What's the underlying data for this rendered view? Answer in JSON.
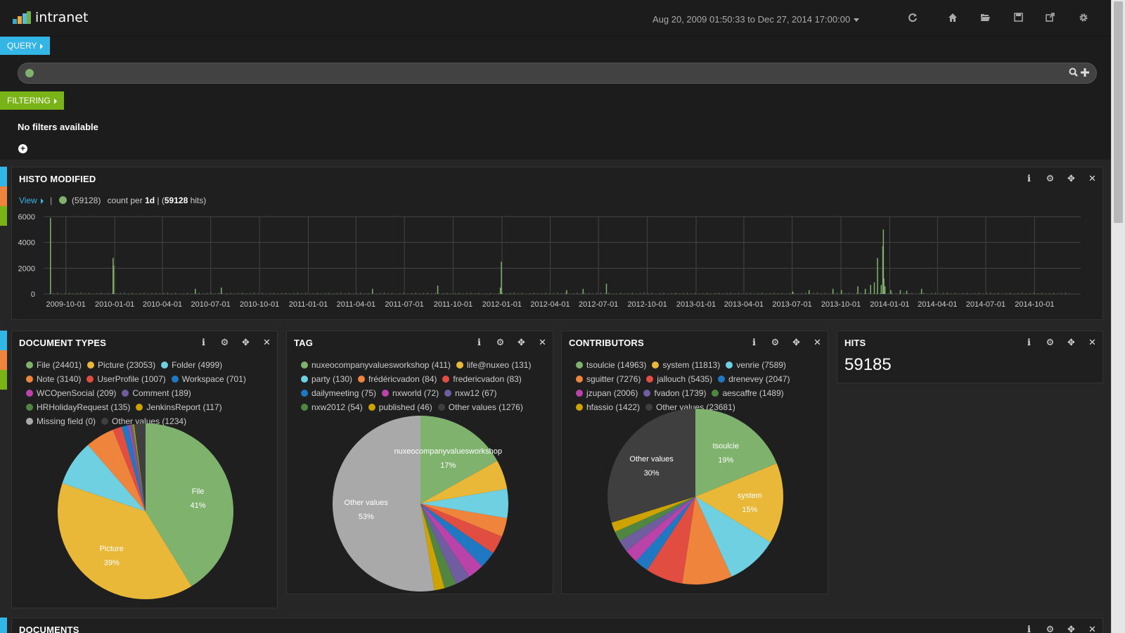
{
  "nav": {
    "title": "intranet",
    "timerange": "Aug 20, 2009 01:50:33 to Dec 27, 2014 17:00:00",
    "icons": [
      "refresh-icon",
      "home-icon",
      "folder-open-icon",
      "save-icon",
      "share-icon",
      "gear-icon"
    ]
  },
  "query": {
    "label": "QUERY",
    "value": "",
    "placeholder": ""
  },
  "filtering": {
    "label": "FILTERING",
    "empty_text": "No filters available"
  },
  "colors": {
    "green": "#7eb26d",
    "yellow": "#eab839",
    "cyan": "#6ed0e0",
    "orange": "#ef843c",
    "red": "#e24d42",
    "blue": "#1f78c1",
    "magenta": "#ba43a9",
    "purple": "#705da0",
    "dgreen": "#508642",
    "gold": "#cca300",
    "grey": "#a9a9a9",
    "dark": "#3f3f3f"
  },
  "histo": {
    "title": "HISTO MODIFIED",
    "view_label": "View",
    "count": "(59128)",
    "count_per": "count per",
    "interval": "1d",
    "hits_open": "| (",
    "hits": "59128",
    "hits_close": " hits)"
  },
  "chart_data": [
    {
      "type": "bar",
      "title": "HISTO MODIFIED",
      "ylim": [
        0,
        6000
      ],
      "yticks": [
        "6000",
        "4000",
        "2000",
        "0"
      ],
      "xticks": [
        "2009-10-01",
        "2010-01-01",
        "2010-04-01",
        "2010-07-01",
        "2010-10-01",
        "2011-01-01",
        "2011-04-01",
        "2011-07-01",
        "2011-10-01",
        "2012-01-01",
        "2012-04-01",
        "2012-07-01",
        "2012-10-01",
        "2013-01-01",
        "2013-04-01",
        "2013-07-01",
        "2013-10-01",
        "2014-01-01",
        "2014-04-01",
        "2014-07-01",
        "2014-10-01"
      ],
      "series": [
        {
          "name": "(59128)",
          "x": [
            "2009-09-01",
            "2009-12-28",
            "2009-12-29",
            "2010-06-01",
            "2010-07-20",
            "2011-05-01",
            "2011-09-01",
            "2011-12-28",
            "2011-12-30",
            "2012-05-01",
            "2012-06-01",
            "2012-07-15",
            "2013-07-01",
            "2013-08-01",
            "2013-09-15",
            "2013-10-01",
            "2013-11-01",
            "2013-11-15",
            "2013-11-25",
            "2013-12-02",
            "2013-12-08",
            "2013-12-15",
            "2013-12-18",
            "2013-12-19",
            "2013-12-20",
            "2013-12-22",
            "2014-01-02",
            "2014-01-20",
            "2014-02-01",
            "2014-03-01"
          ],
          "values": [
            5900,
            2800,
            2200,
            400,
            500,
            400,
            650,
            500,
            2500,
            300,
            400,
            800,
            200,
            300,
            400,
            300,
            600,
            400,
            700,
            900,
            2800,
            700,
            3700,
            5000,
            1200,
            600,
            300,
            300,
            250,
            400
          ]
        }
      ]
    },
    {
      "type": "pie",
      "title": "DOCUMENT TYPES",
      "categories": [
        "File",
        "Picture",
        "Folder",
        "Note",
        "UserProfile",
        "Workspace",
        "WCOpenSocial",
        "Comment",
        "HRHolidayRequest",
        "JenkinsReport",
        "Missing field",
        "Other values"
      ],
      "values": [
        24401,
        23053,
        4999,
        3140,
        1007,
        701,
        209,
        189,
        135,
        117,
        0,
        1234
      ],
      "colors": [
        "green",
        "yellow",
        "cyan",
        "orange",
        "red",
        "blue",
        "magenta",
        "purple",
        "dgreen",
        "gold",
        "grey",
        "dark"
      ]
    },
    {
      "type": "pie",
      "title": "TAG",
      "categories": [
        "nuxeocompanyvaluesworkshop",
        "life@nuxeo",
        "party",
        "frédéricvadon",
        "fredericvadon",
        "dailymeeting",
        "nxworld",
        "nxw12",
        "nxw2012",
        "published",
        "Other values"
      ],
      "values": [
        411,
        131,
        130,
        84,
        83,
        75,
        72,
        67,
        54,
        46,
        1276
      ],
      "colors": [
        "green",
        "yellow",
        "cyan",
        "orange",
        "red",
        "blue",
        "magenta",
        "purple",
        "dgreen",
        "gold",
        "grey"
      ]
    },
    {
      "type": "pie",
      "title": "CONTRIBUTORS",
      "categories": [
        "tsoulcie",
        "system",
        "venrie",
        "sguitter",
        "jallouch",
        "drenevey",
        "jzupan",
        "fvadon",
        "aescaffre",
        "hfassio",
        "Other values"
      ],
      "values": [
        14963,
        11813,
        7589,
        7276,
        5435,
        2047,
        2006,
        1739,
        1489,
        1422,
        23681
      ],
      "colors": [
        "green",
        "yellow",
        "cyan",
        "orange",
        "red",
        "blue",
        "magenta",
        "purple",
        "dgreen",
        "gold",
        "dark"
      ]
    }
  ],
  "doctypes": {
    "title": "DOCUMENT TYPES",
    "legend": [
      {
        "label": "File (24401)",
        "color": "green"
      },
      {
        "label": "Picture (23053)",
        "color": "yellow"
      },
      {
        "label": "Folder (4999)",
        "color": "cyan"
      },
      {
        "label": "Note (3140)",
        "color": "orange"
      },
      {
        "label": "UserProfile (1007)",
        "color": "red"
      },
      {
        "label": "Workspace (701)",
        "color": "blue"
      },
      {
        "label": "WCOpenSocial (209)",
        "color": "magenta"
      },
      {
        "label": "Comment (189)",
        "color": "purple"
      },
      {
        "label": "HRHolidayRequest (135)",
        "color": "dgreen"
      },
      {
        "label": "JenkinsReport (117)",
        "color": "gold"
      },
      {
        "label": "Missing field (0)",
        "color": "grey"
      },
      {
        "label": "Other values (1234)",
        "color": "dark"
      }
    ],
    "slice_labels": [
      {
        "name": "File",
        "pct": "41%"
      },
      {
        "name": "Picture",
        "pct": "39%"
      }
    ]
  },
  "tag": {
    "title": "TAG",
    "legend": [
      {
        "label": "nuxeocompanyvaluesworkshop (411)",
        "color": "green"
      },
      {
        "label": "life@nuxeo (131)",
        "color": "yellow"
      },
      {
        "label": "party (130)",
        "color": "cyan"
      },
      {
        "label": "frédéricvadon (84)",
        "color": "orange"
      },
      {
        "label": "fredericvadon (83)",
        "color": "red"
      },
      {
        "label": "dailymeeting (75)",
        "color": "blue"
      },
      {
        "label": "nxworld (72)",
        "color": "magenta"
      },
      {
        "label": "nxw12 (67)",
        "color": "purple"
      },
      {
        "label": "nxw2012 (54)",
        "color": "dgreen"
      },
      {
        "label": "published (46)",
        "color": "gold"
      },
      {
        "label": "Other values (1276)",
        "color": "dark"
      }
    ],
    "slice_labels": [
      {
        "name": "nuxeocompanyvaluesworkshop",
        "pct": "17%"
      },
      {
        "name": "Other values",
        "pct": "53%"
      }
    ]
  },
  "contributors": {
    "title": "CONTRIBUTORS",
    "legend": [
      {
        "label": "tsoulcie (14963)",
        "color": "green"
      },
      {
        "label": "system (11813)",
        "color": "yellow"
      },
      {
        "label": "venrie (7589)",
        "color": "cyan"
      },
      {
        "label": "sguitter (7276)",
        "color": "orange"
      },
      {
        "label": "jallouch (5435)",
        "color": "red"
      },
      {
        "label": "drenevey (2047)",
        "color": "blue"
      },
      {
        "label": "jzupan (2006)",
        "color": "magenta"
      },
      {
        "label": "fvadon (1739)",
        "color": "purple"
      },
      {
        "label": "aescaffre (1489)",
        "color": "dgreen"
      },
      {
        "label": "hfassio (1422)",
        "color": "gold"
      },
      {
        "label": "Other values (23681)",
        "color": "dark"
      }
    ],
    "slice_labels": [
      {
        "name": "tsoulcie",
        "pct": "19%"
      },
      {
        "name": "system",
        "pct": "15%"
      },
      {
        "name": "Other values",
        "pct": "30%"
      }
    ]
  },
  "hits": {
    "title": "HITS",
    "value": "59185"
  },
  "documents": {
    "title": "DOCUMENTS"
  }
}
